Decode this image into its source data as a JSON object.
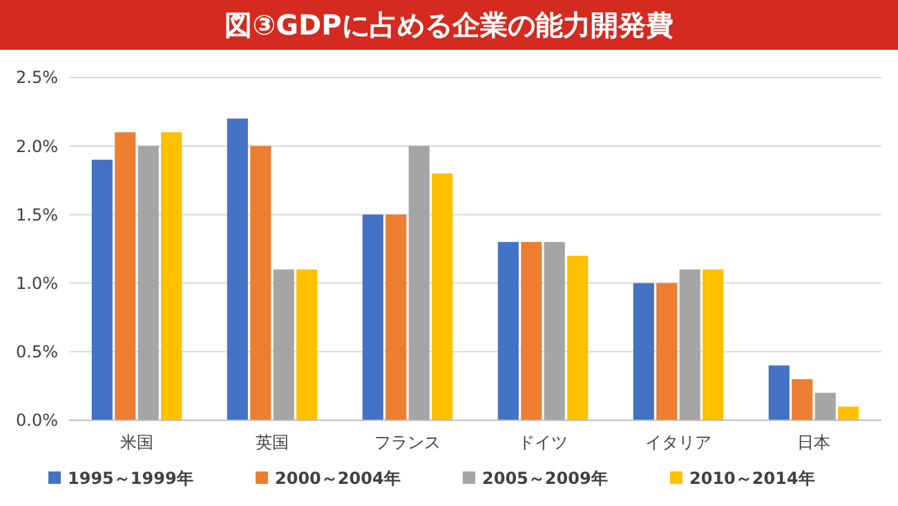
{
  "chart_data": {
    "type": "bar",
    "title": "図③GDPに占める企業の能力開発費",
    "categories": [
      "米国",
      "英国",
      "フランス",
      "ドイツ",
      "イタリア",
      "日本"
    ],
    "series": [
      {
        "name": "1995～1999年",
        "color": "#4472c4",
        "values": [
          1.9,
          2.2,
          1.5,
          1.3,
          1.0,
          0.4
        ]
      },
      {
        "name": "2000～2004年",
        "color": "#ed7d31",
        "values": [
          2.1,
          2.0,
          1.5,
          1.3,
          1.0,
          0.3
        ]
      },
      {
        "name": "2005～2009年",
        "color": "#a5a5a5",
        "values": [
          2.0,
          1.1,
          2.0,
          1.3,
          1.1,
          0.2
        ]
      },
      {
        "name": "2010～2014年",
        "color": "#ffc000",
        "values": [
          2.1,
          1.1,
          1.8,
          1.2,
          1.1,
          0.1
        ]
      }
    ],
    "ylim": [
      0,
      2.5
    ],
    "yticks": [
      {
        "value": 0,
        "label": "0.0%"
      },
      {
        "value": 0.5,
        "label": "0.5%"
      },
      {
        "value": 1,
        "label": "1.0%"
      },
      {
        "value": 1.5,
        "label": "1.5%"
      },
      {
        "value": 2,
        "label": "2.0%"
      },
      {
        "value": 2.5,
        "label": "2.5%"
      }
    ],
    "grid": "y",
    "legend": "bottom"
  }
}
